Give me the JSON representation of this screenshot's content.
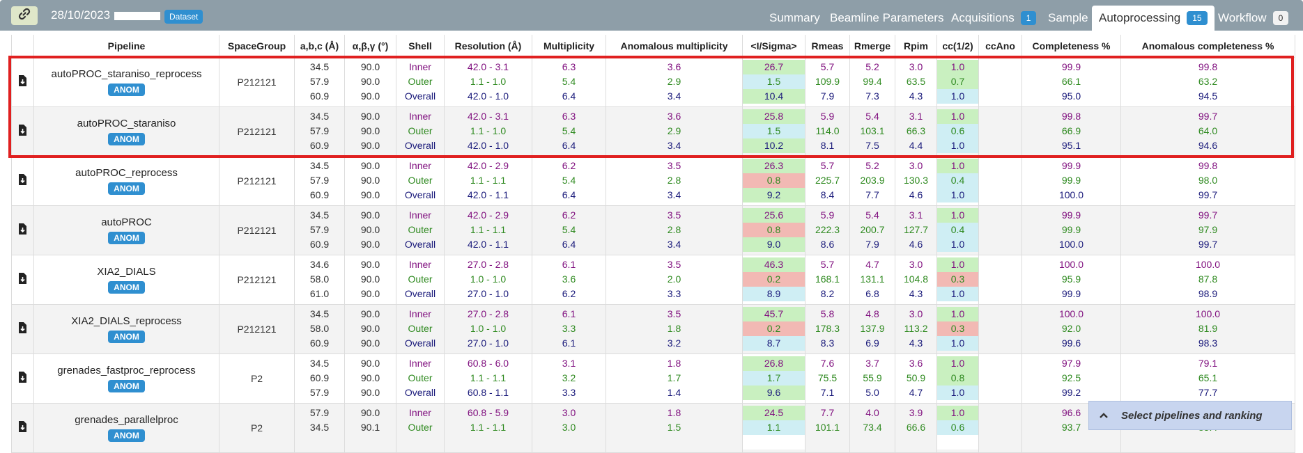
{
  "header": {
    "date": "28/10/2023",
    "dataset_badge": "Dataset",
    "tabs": [
      {
        "label": "Summary"
      },
      {
        "label": "Beamline Parameters"
      },
      {
        "label": "Acquisitions",
        "count": "1"
      },
      {
        "label": "Sample"
      },
      {
        "label": "Autoprocessing",
        "count": "15",
        "active": true
      },
      {
        "label": "Workflow",
        "count": "0"
      }
    ]
  },
  "table": {
    "columns": [
      "Pipeline",
      "SpaceGroup",
      "a,b,c (Å)",
      "α,β,γ (°)",
      "Shell",
      "Resolution (Å)",
      "Multiplicity",
      "Anomalous multiplicity",
      "<I/Sigma>",
      "Rmeas",
      "Rmerge",
      "Rpim",
      "cc(1/2)",
      "ccAno",
      "Completeness %",
      "Anomalous completeness %"
    ],
    "rows": [
      {
        "pipeline": "autoPROC_staraniso_reprocess",
        "badge": "ANOM",
        "spacegroup": "P212121",
        "abc": [
          "34.5",
          "57.9",
          "60.9"
        ],
        "angles": [
          "90.0",
          "90.0",
          "90.0"
        ],
        "shell": [
          "Inner",
          "Outer",
          "Overall"
        ],
        "resolution": [
          "42.0 - 3.1",
          "1.1 - 1.0",
          "42.0 - 1.0"
        ],
        "multiplicity": [
          "6.3",
          "5.4",
          "6.4"
        ],
        "anom_mult": [
          "3.6",
          "2.9",
          "3.4"
        ],
        "isigma": [
          "26.7",
          "1.5",
          "10.4"
        ],
        "rmeas": [
          "5.7",
          "109.9",
          "7.9"
        ],
        "rmerge": [
          "5.2",
          "99.4",
          "7.3"
        ],
        "rpim": [
          "3.0",
          "63.5",
          "4.3"
        ],
        "cc12": [
          "1.0",
          "0.7",
          "1.0"
        ],
        "ccano": [
          "",
          "",
          ""
        ],
        "completeness": [
          "99.9",
          "66.1",
          "95.0"
        ],
        "anom_completeness": [
          "99.8",
          "63.2",
          "94.5"
        ],
        "isigma_colors": [
          "#c9f0c0",
          "#cfeef4",
          "#c9f0c0"
        ],
        "cc12_colors": [
          "#c9f0c0",
          "#c9f0c0",
          "#cfeef4"
        ]
      },
      {
        "pipeline": "autoPROC_staraniso",
        "badge": "ANOM",
        "spacegroup": "P212121",
        "abc": [
          "34.5",
          "57.9",
          "60.9"
        ],
        "angles": [
          "90.0",
          "90.0",
          "90.0"
        ],
        "shell": [
          "Inner",
          "Outer",
          "Overall"
        ],
        "resolution": [
          "42.0 - 3.1",
          "1.1 - 1.0",
          "42.0 - 1.0"
        ],
        "multiplicity": [
          "6.3",
          "5.4",
          "6.4"
        ],
        "anom_mult": [
          "3.6",
          "2.9",
          "3.4"
        ],
        "isigma": [
          "25.8",
          "1.5",
          "10.2"
        ],
        "rmeas": [
          "5.9",
          "114.0",
          "8.1"
        ],
        "rmerge": [
          "5.4",
          "103.1",
          "7.5"
        ],
        "rpim": [
          "3.1",
          "66.3",
          "4.4"
        ],
        "cc12": [
          "1.0",
          "0.6",
          "1.0"
        ],
        "ccano": [
          "",
          "",
          ""
        ],
        "completeness": [
          "99.8",
          "66.9",
          "95.1"
        ],
        "anom_completeness": [
          "99.7",
          "64.0",
          "94.6"
        ],
        "isigma_colors": [
          "#c9f0c0",
          "#cfeef4",
          "#c9f0c0"
        ],
        "cc12_colors": [
          "#c9f0c0",
          "#cfeef4",
          "#cfeef4"
        ]
      },
      {
        "pipeline": "autoPROC_reprocess",
        "badge": "ANOM",
        "spacegroup": "P212121",
        "abc": [
          "34.5",
          "57.9",
          "60.9"
        ],
        "angles": [
          "90.0",
          "90.0",
          "90.0"
        ],
        "shell": [
          "Inner",
          "Outer",
          "Overall"
        ],
        "resolution": [
          "42.0 - 2.9",
          "1.1 - 1.1",
          "42.0 - 1.1"
        ],
        "multiplicity": [
          "6.2",
          "5.4",
          "6.4"
        ],
        "anom_mult": [
          "3.5",
          "2.8",
          "3.4"
        ],
        "isigma": [
          "26.3",
          "0.8",
          "9.2"
        ],
        "rmeas": [
          "5.7",
          "225.7",
          "8.4"
        ],
        "rmerge": [
          "5.2",
          "203.9",
          "7.7"
        ],
        "rpim": [
          "3.0",
          "130.3",
          "4.6"
        ],
        "cc12": [
          "1.0",
          "0.4",
          "1.0"
        ],
        "ccano": [
          "",
          "",
          ""
        ],
        "completeness": [
          "99.9",
          "99.9",
          "100.0"
        ],
        "anom_completeness": [
          "99.8",
          "98.0",
          "99.7"
        ],
        "isigma_colors": [
          "#c9f0c0",
          "#f2b9b4",
          "#c9f0c0"
        ],
        "cc12_colors": [
          "#c9f0c0",
          "#cfeef4",
          "#cfeef4"
        ]
      },
      {
        "pipeline": "autoPROC",
        "badge": "ANOM",
        "spacegroup": "P212121",
        "abc": [
          "34.5",
          "57.9",
          "60.9"
        ],
        "angles": [
          "90.0",
          "90.0",
          "90.0"
        ],
        "shell": [
          "Inner",
          "Outer",
          "Overall"
        ],
        "resolution": [
          "42.0 - 2.9",
          "1.1 - 1.1",
          "42.0 - 1.1"
        ],
        "multiplicity": [
          "6.2",
          "5.4",
          "6.4"
        ],
        "anom_mult": [
          "3.5",
          "2.8",
          "3.4"
        ],
        "isigma": [
          "25.6",
          "0.8",
          "9.0"
        ],
        "rmeas": [
          "5.9",
          "222.3",
          "8.6"
        ],
        "rmerge": [
          "5.4",
          "200.7",
          "7.9"
        ],
        "rpim": [
          "3.1",
          "127.7",
          "4.6"
        ],
        "cc12": [
          "1.0",
          "0.4",
          "1.0"
        ],
        "ccano": [
          "",
          "",
          ""
        ],
        "completeness": [
          "99.9",
          "99.9",
          "100.0"
        ],
        "anom_completeness": [
          "99.7",
          "97.9",
          "99.7"
        ],
        "isigma_colors": [
          "#c9f0c0",
          "#f2b9b4",
          "#c9f0c0"
        ],
        "cc12_colors": [
          "#c9f0c0",
          "#cfeef4",
          "#cfeef4"
        ]
      },
      {
        "pipeline": "XIA2_DIALS",
        "badge": "ANOM",
        "spacegroup": "P212121",
        "abc": [
          "34.6",
          "58.0",
          "61.0"
        ],
        "angles": [
          "90.0",
          "90.0",
          "90.0"
        ],
        "shell": [
          "Inner",
          "Outer",
          "Overall"
        ],
        "resolution": [
          "27.0 - 2.8",
          "1.0 - 1.0",
          "27.0 - 1.0"
        ],
        "multiplicity": [
          "6.1",
          "3.6",
          "6.2"
        ],
        "anom_mult": [
          "3.5",
          "2.0",
          "3.3"
        ],
        "isigma": [
          "46.3",
          "0.2",
          "8.9"
        ],
        "rmeas": [
          "5.7",
          "168.1",
          "8.2"
        ],
        "rmerge": [
          "4.7",
          "131.1",
          "6.8"
        ],
        "rpim": [
          "3.0",
          "104.8",
          "4.3"
        ],
        "cc12": [
          "1.0",
          "0.3",
          "1.0"
        ],
        "ccano": [
          "",
          "",
          ""
        ],
        "completeness": [
          "100.0",
          "95.9",
          "99.9"
        ],
        "anom_completeness": [
          "100.0",
          "87.8",
          "98.9"
        ],
        "isigma_colors": [
          "#c9f0c0",
          "#f2b9b4",
          "#cfeef4"
        ],
        "cc12_colors": [
          "#c9f0c0",
          "#f2b9b4",
          "#cfeef4"
        ]
      },
      {
        "pipeline": "XIA2_DIALS_reprocess",
        "badge": "ANOM",
        "spacegroup": "P212121",
        "abc": [
          "34.5",
          "58.0",
          "60.9"
        ],
        "angles": [
          "90.0",
          "90.0",
          "90.0"
        ],
        "shell": [
          "Inner",
          "Outer",
          "Overall"
        ],
        "resolution": [
          "27.0 - 2.8",
          "1.0 - 1.0",
          "27.0 - 1.0"
        ],
        "multiplicity": [
          "6.1",
          "3.3",
          "6.1"
        ],
        "anom_mult": [
          "3.5",
          "1.8",
          "3.2"
        ],
        "isigma": [
          "45.7",
          "0.2",
          "8.7"
        ],
        "rmeas": [
          "5.8",
          "178.3",
          "8.3"
        ],
        "rmerge": [
          "4.8",
          "137.9",
          "6.9"
        ],
        "rpim": [
          "3.0",
          "113.2",
          "4.3"
        ],
        "cc12": [
          "1.0",
          "0.3",
          "1.0"
        ],
        "ccano": [
          "",
          "",
          ""
        ],
        "completeness": [
          "100.0",
          "92.0",
          "99.6"
        ],
        "anom_completeness": [
          "100.0",
          "81.9",
          "98.3"
        ],
        "isigma_colors": [
          "#c9f0c0",
          "#f2b9b4",
          "#cfeef4"
        ],
        "cc12_colors": [
          "#c9f0c0",
          "#f2b9b4",
          "#cfeef4"
        ]
      },
      {
        "pipeline": "grenades_fastproc_reprocess",
        "badge": "ANOM",
        "spacegroup": "P2",
        "abc": [
          "34.5",
          "60.9",
          "57.9"
        ],
        "angles": [
          "90.0",
          "90.0",
          "90.0"
        ],
        "shell": [
          "Inner",
          "Outer",
          "Overall"
        ],
        "resolution": [
          "60.8 - 6.0",
          "1.1 - 1.1",
          "60.8 - 1.1"
        ],
        "multiplicity": [
          "3.1",
          "3.2",
          "3.3"
        ],
        "anom_mult": [
          "1.8",
          "1.7",
          "1.4"
        ],
        "isigma": [
          "26.8",
          "1.7",
          "9.6"
        ],
        "rmeas": [
          "7.6",
          "75.5",
          "7.1"
        ],
        "rmerge": [
          "3.7",
          "55.9",
          "5.0"
        ],
        "rpim": [
          "3.6",
          "50.9",
          "4.7"
        ],
        "cc12": [
          "1.0",
          "0.8",
          "1.0"
        ],
        "ccano": [
          "",
          "",
          ""
        ],
        "completeness": [
          "97.9",
          "92.5",
          "99.2"
        ],
        "anom_completeness": [
          "79.1",
          "65.1",
          "77.7"
        ],
        "isigma_colors": [
          "#c9f0c0",
          "#cfeef4",
          "#c9f0c0"
        ],
        "cc12_colors": [
          "#c9f0c0",
          "#c9f0c0",
          "#cfeef4"
        ]
      },
      {
        "pipeline": "grenades_parallelproc",
        "badge": "ANOM",
        "spacegroup": "P2",
        "abc": [
          "57.9",
          "34.5",
          ""
        ],
        "angles": [
          "90.0",
          "90.1",
          ""
        ],
        "shell": [
          "Inner",
          "Outer",
          ""
        ],
        "resolution": [
          "60.8 - 5.9",
          "1.1 - 1.1",
          ""
        ],
        "multiplicity": [
          "3.0",
          "3.0",
          ""
        ],
        "anom_mult": [
          "1.8",
          "1.5",
          ""
        ],
        "isigma": [
          "24.5",
          "1.1",
          ""
        ],
        "rmeas": [
          "7.7",
          "101.1",
          ""
        ],
        "rmerge": [
          "4.0",
          "73.4",
          ""
        ],
        "rpim": [
          "3.9",
          "66.6",
          ""
        ],
        "cc12": [
          "1.0",
          "0.6",
          ""
        ],
        "ccano": [
          "",
          "",
          ""
        ],
        "completeness": [
          "96.6",
          "93.7",
          ""
        ],
        "anom_completeness": [
          "",
          "83.4",
          ""
        ],
        "isigma_colors": [
          "#c9f0c0",
          "#cfeef4",
          "#ffffff"
        ],
        "cc12_colors": [
          "#c9f0c0",
          "#cfeef4",
          "#ffffff"
        ]
      }
    ]
  },
  "select_panel": {
    "label": "Select pipelines and ranking"
  },
  "colors": {
    "inner": "#80107f",
    "outer": "#2f8a20",
    "overall": "#19197a",
    "highlight": "#e02020",
    "badge": "#2f8fd0"
  }
}
